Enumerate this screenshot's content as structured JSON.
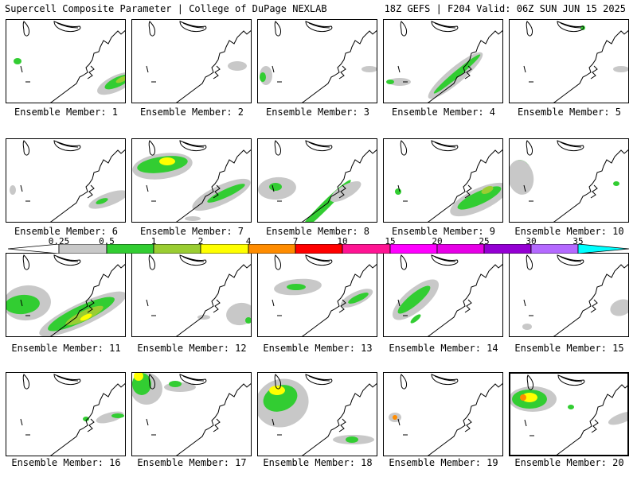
{
  "header": {
    "title": "Supercell Composite Parameter | College of DuPage NEXLAB",
    "run_info": "18Z GEFS | F204 Valid: 06Z SUN JUN 15 2025"
  },
  "legend": {
    "labels": [
      "0.25",
      "0.5",
      "1",
      "2",
      "4",
      "7",
      "10",
      "15",
      "20",
      "25",
      "30",
      "35"
    ],
    "colors": [
      "#ffffff",
      "#c8c8c8",
      "#32cd32",
      "#9acd32",
      "#ffff00",
      "#ff8c00",
      "#ff0000",
      "#ff1493",
      "#ff00ff",
      "#e600e6",
      "#9400d3",
      "#b469ff",
      "#00ffff"
    ]
  },
  "panels": [
    {
      "caption": "Ensemble Member: 1"
    },
    {
      "caption": "Ensemble Member: 2"
    },
    {
      "caption": "Ensemble Member: 3"
    },
    {
      "caption": "Ensemble Member: 4"
    },
    {
      "caption": "Ensemble Member: 5"
    },
    {
      "caption": "Ensemble Member: 6"
    },
    {
      "caption": "Ensemble Member: 7"
    },
    {
      "caption": "Ensemble Member: 8"
    },
    {
      "caption": "Ensemble Member: 9"
    },
    {
      "caption": "Ensemble Member: 10"
    },
    {
      "caption": "Ensemble Member: 11"
    },
    {
      "caption": "Ensemble Member: 12"
    },
    {
      "caption": "Ensemble Member: 13"
    },
    {
      "caption": "Ensemble Member: 14"
    },
    {
      "caption": "Ensemble Member: 15"
    },
    {
      "caption": "Ensemble Member: 16"
    },
    {
      "caption": "Ensemble Member: 17"
    },
    {
      "caption": "Ensemble Member: 18"
    },
    {
      "caption": "Ensemble Member: 19"
    },
    {
      "caption": "Ensemble Member: 20"
    }
  ],
  "colors": {
    "gray_contour": "#c8c8c8",
    "green_contour": "#32cd32",
    "lightgreen_contour": "#9acd32",
    "yellow_contour": "#ffff00",
    "orange_contour": "#ff8c00",
    "red_contour": "#ff0000"
  }
}
